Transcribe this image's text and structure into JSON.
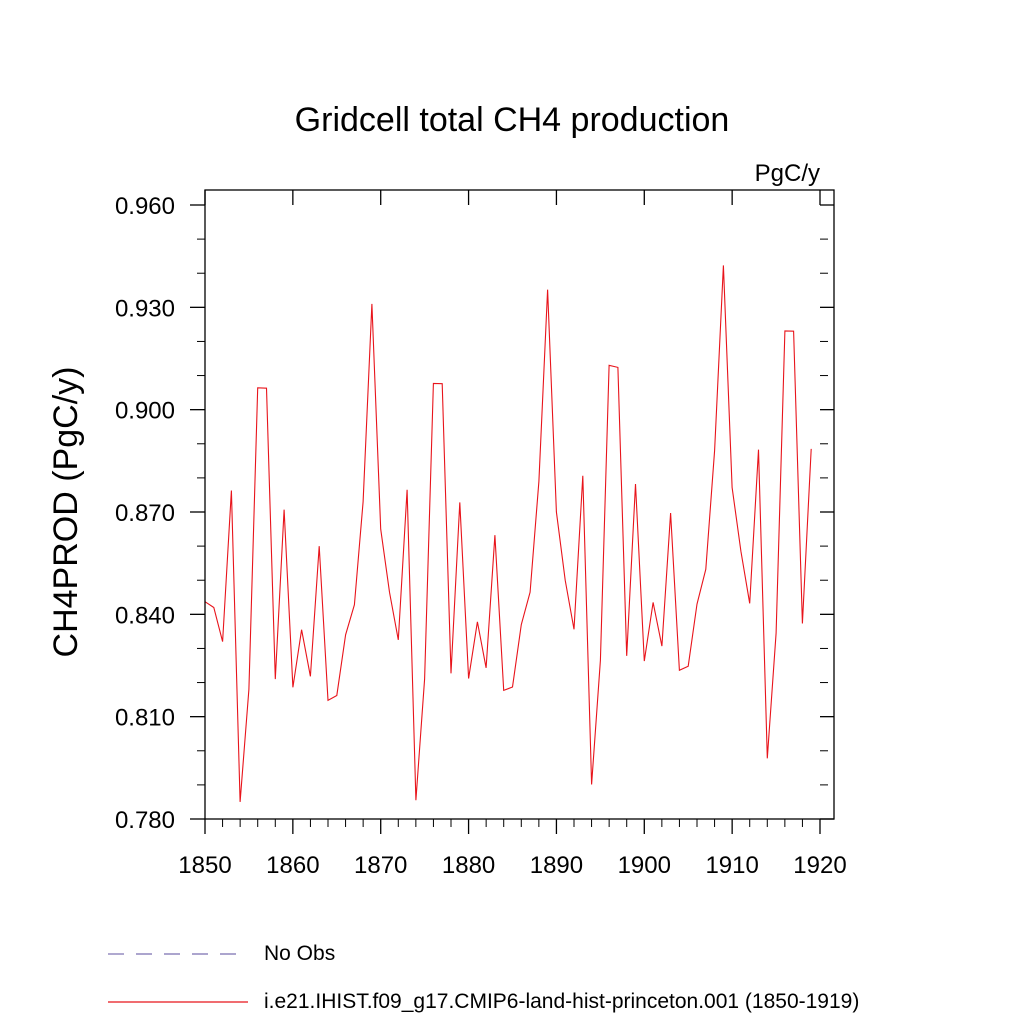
{
  "chart_data": {
    "type": "line",
    "title": "Gridcell total CH4 production",
    "units_label": "PgC/y",
    "ylabel": "CH4PROD  (PgC/y)",
    "xlabel": "",
    "xlim": [
      1850,
      1920
    ],
    "ylim": [
      0.78,
      0.96
    ],
    "x_ticks": [
      "1850",
      "1860",
      "1870",
      "1880",
      "1890",
      "1900",
      "1910",
      "1920"
    ],
    "y_ticks": [
      "0.780",
      "0.810",
      "0.840",
      "0.870",
      "0.900",
      "0.930",
      "0.960"
    ],
    "grid": false,
    "legend_position": "bottom-left",
    "legend": [
      {
        "label": "No Obs",
        "style": "dashed",
        "color": "#7b6fb0"
      },
      {
        "label": "i.e21.IHIST.f09_g17.CMIP6-land-hist-princeton.001 (1850-1919)",
        "style": "solid",
        "color": "#e8141b"
      }
    ],
    "series": [
      {
        "color": "#e8141b",
        "x": [
          1850,
          1851,
          1852,
          1853,
          1854,
          1855,
          1856,
          1857,
          1858,
          1859,
          1860,
          1861,
          1862,
          1863,
          1864,
          1865,
          1866,
          1867,
          1868,
          1869,
          1870,
          1871,
          1872,
          1873,
          1874,
          1875,
          1876,
          1877,
          1878,
          1879,
          1880,
          1881,
          1882,
          1883,
          1884,
          1885,
          1886,
          1887,
          1888,
          1889,
          1890,
          1891,
          1892,
          1893,
          1894,
          1895,
          1896,
          1897,
          1898,
          1899,
          1900,
          1901,
          1902,
          1903,
          1904,
          1905,
          1906,
          1907,
          1908,
          1909,
          1910,
          1911,
          1912,
          1913,
          1914,
          1915,
          1916,
          1917,
          1918,
          1919
        ],
        "values": [
          0.8437,
          0.842,
          0.832,
          0.8763,
          0.785,
          0.818,
          0.9064,
          0.9063,
          0.821,
          0.8707,
          0.8186,
          0.8355,
          0.8218,
          0.86,
          0.8148,
          0.8162,
          0.834,
          0.8428,
          0.873,
          0.931,
          0.865,
          0.8465,
          0.8325,
          0.8765,
          0.7855,
          0.821,
          0.9077,
          0.9076,
          0.8227,
          0.8728,
          0.8212,
          0.8378,
          0.8243,
          0.8632,
          0.8177,
          0.8187,
          0.837,
          0.8465,
          0.879,
          0.9352,
          0.87,
          0.85,
          0.8356,
          0.8806,
          0.7901,
          0.8265,
          0.913,
          0.9124,
          0.8278,
          0.8782,
          0.8263,
          0.8435,
          0.8307,
          0.8697,
          0.8236,
          0.8248,
          0.843,
          0.8532,
          0.888,
          0.9423,
          0.8772,
          0.8585,
          0.8432,
          0.8883,
          0.7978,
          0.8345,
          0.9231,
          0.923,
          0.8373,
          0.8885
        ]
      }
    ]
  }
}
